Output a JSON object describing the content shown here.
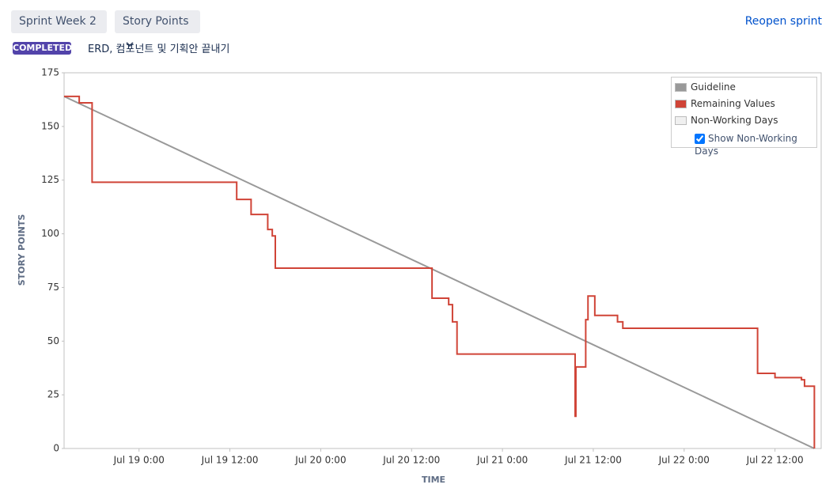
{
  "header": {
    "sprint_select": "Sprint Week 2",
    "estimate_select": "Story Points",
    "reopen_link": "Reopen sprint",
    "status_badge": "COMPLETED",
    "sprint_goal": "ERD, 컴포넌트 및 기획안 끝내기"
  },
  "controls": {
    "show_non_working_days": "Show Non-Working Days",
    "show_non_working_days_checked": true
  },
  "chart_data": {
    "type": "line",
    "x_label": "TIME",
    "y_label": "STORY POINTS",
    "xlim": [
      -9.9,
      90.1
    ],
    "ylim": [
      0,
      175
    ],
    "xticks": [
      {
        "value": 0,
        "label": "Jul 19 0:00"
      },
      {
        "value": 12,
        "label": "Jul 19 12:00"
      },
      {
        "value": 24,
        "label": "Jul 20 0:00"
      },
      {
        "value": 36,
        "label": "Jul 20 12:00"
      },
      {
        "value": 48,
        "label": "Jul 21 0:00"
      },
      {
        "value": 60,
        "label": "Jul 21 12:00"
      },
      {
        "value": 72,
        "label": "Jul 22 0:00"
      },
      {
        "value": 84,
        "label": "Jul 22 12:00"
      }
    ],
    "yticks": [
      0,
      25,
      50,
      75,
      100,
      125,
      150,
      175
    ],
    "grid": false,
    "legend_position": "upper right",
    "series": [
      {
        "name": "Guideline",
        "color": "#999999",
        "x": [
          -9.9,
          89.2
        ],
        "values": [
          164,
          0
        ]
      },
      {
        "name": "Remaining Values",
        "color": "#d04437",
        "x": [
          -9.9,
          -7.9,
          -7.9,
          -6.2,
          -6.2,
          12.9,
          12.9,
          14.8,
          14.8,
          17.0,
          17.0,
          17.6,
          17.6,
          18.0,
          18.0,
          38.7,
          38.7,
          40.9,
          40.9,
          41.4,
          41.4,
          42.0,
          42.0,
          57.6,
          57.6,
          57.7,
          57.7,
          59.0,
          59.0,
          59.3,
          59.3,
          60.2,
          60.2,
          63.2,
          63.2,
          63.9,
          63.9,
          81.7,
          81.7,
          84.0,
          84.0,
          87.5,
          87.5,
          87.9,
          87.9,
          89.2,
          89.2
        ],
        "values": [
          164,
          164,
          161,
          161,
          124,
          124,
          116,
          116,
          109,
          109,
          102,
          102,
          99,
          99,
          84,
          84,
          70,
          70,
          67,
          67,
          59,
          59,
          44,
          44,
          15,
          15,
          38,
          38,
          60,
          60,
          71,
          71,
          62,
          62,
          59,
          59,
          56,
          56,
          35,
          35,
          33,
          33,
          32,
          32,
          29,
          29,
          0
        ]
      },
      {
        "name": "Non-Working Days",
        "color": "#f0f0f0",
        "x": [],
        "values": []
      }
    ]
  }
}
